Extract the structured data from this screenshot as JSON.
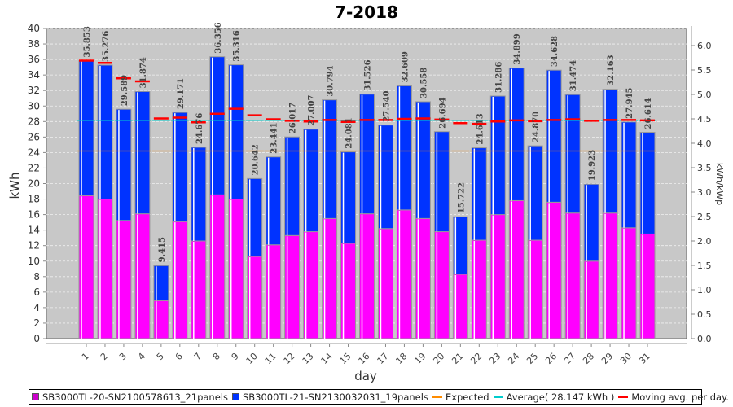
{
  "chart_data": {
    "type": "bar",
    "stacked": true,
    "title": "7-2018",
    "xlabel": "day",
    "ylabel": "kWh",
    "ylabel_right": "kWh/kWp",
    "ylim": [
      0,
      40
    ],
    "yticks": [
      0,
      2,
      4,
      6,
      8,
      10,
      12,
      14,
      16,
      18,
      20,
      22,
      24,
      26,
      28,
      30,
      32,
      34,
      36,
      38,
      40
    ],
    "ylim_right": [
      0,
      6.0
    ],
    "yticks_right": [
      "0.0",
      "0.5",
      "1.0",
      "1.5",
      "2.0",
      "2.5",
      "3.0",
      "3.5",
      "4.0",
      "4.5",
      "5.0",
      "5.5",
      "6.0"
    ],
    "grid": true,
    "legend_position": "bottom",
    "categories": [
      "1",
      "2",
      "3",
      "4",
      "5",
      "6",
      "7",
      "8",
      "9",
      "10",
      "11",
      "12",
      "13",
      "14",
      "15",
      "16",
      "17",
      "18",
      "19",
      "20",
      "21",
      "22",
      "23",
      "24",
      "25",
      "26",
      "27",
      "28",
      "29",
      "30",
      "31"
    ],
    "series": [
      {
        "name": "SB3000TL-20-SN2100578613_21panels",
        "color": "#ff00ff",
        "values": [
          18.45,
          18.0,
          15.25,
          16.1,
          4.9,
          15.1,
          12.6,
          18.55,
          18.0,
          10.6,
          12.1,
          13.3,
          13.8,
          15.5,
          12.3,
          16.1,
          14.2,
          16.6,
          15.5,
          13.8,
          8.3,
          12.7,
          16.0,
          17.8,
          12.7,
          17.6,
          16.2,
          10.0,
          16.2,
          14.3,
          13.5
        ]
      },
      {
        "name": "SB3000TL-21-SN2130032031_19panels",
        "color": "#0033ff",
        "values": [
          17.403,
          17.276,
          14.339,
          15.774,
          4.515,
          14.071,
          12.076,
          17.806,
          17.316,
          10.042,
          11.341,
          12.717,
          13.207,
          15.294,
          11.781,
          15.426,
          13.34,
          16.009,
          15.058,
          12.894,
          7.422,
          11.913,
          15.286,
          17.099,
          12.17,
          17.028,
          15.274,
          9.923,
          15.963,
          13.645,
          13.114
        ]
      }
    ],
    "totals": [
      "35.853",
      "35.276",
      "29.589",
      "31.874",
      "9.415",
      "29.171",
      "24.676",
      "36.356",
      "35.316",
      "20.642",
      "23.441",
      "26.017",
      "27.007",
      "30.794",
      "24.081",
      "31.526",
      "27.540",
      "32.609",
      "30.558",
      "26.694",
      "15.722",
      "24.613",
      "31.286",
      "34.899",
      "24.870",
      "34.628",
      "31.474",
      "19.923",
      "32.163",
      "27.945",
      "26.614"
    ],
    "lines": [
      {
        "name": "Expected",
        "color": "#ff8c00",
        "values": [
          24.2,
          24.2,
          24.2,
          24.2,
          24.2,
          24.2,
          24.2,
          24.2,
          24.2,
          24.2,
          24.2,
          24.2,
          24.2,
          24.2,
          24.2,
          24.2,
          24.2,
          24.2,
          24.2,
          24.2,
          24.2,
          24.2,
          24.2,
          24.2,
          24.2,
          24.2,
          24.2,
          24.2,
          24.2,
          24.2,
          24.2
        ]
      },
      {
        "name": "Average( 28.147 kWh )",
        "color": "#00cccc",
        "value": 28.147
      },
      {
        "name": "Moving avg. per day.",
        "color": "#ff0000",
        "values": [
          35.85,
          35.56,
          33.57,
          33.17,
          28.4,
          28.5,
          27.9,
          29.0,
          29.65,
          28.8,
          28.3,
          28.1,
          28.0,
          28.2,
          27.95,
          28.2,
          28.2,
          28.35,
          28.4,
          28.25,
          27.8,
          27.7,
          28.0,
          28.15,
          28.05,
          28.2,
          28.3,
          28.1,
          28.2,
          28.2,
          28.15
        ]
      }
    ]
  },
  "legend": {
    "items": [
      {
        "label": "SB3000TL-20-SN2100578613_21panels",
        "kind": "box",
        "color": "#cc00cc"
      },
      {
        "label": "SB3000TL-21-SN2130032031_19panels",
        "kind": "box",
        "color": "#0033ff"
      },
      {
        "label": "Expected",
        "kind": "line",
        "color": "#ff8c00"
      },
      {
        "label": "Average( 28.147 kWh )",
        "kind": "line",
        "color": "#00cccc"
      },
      {
        "label": "Moving avg. per day.",
        "kind": "line",
        "color": "#ff0000"
      }
    ]
  }
}
